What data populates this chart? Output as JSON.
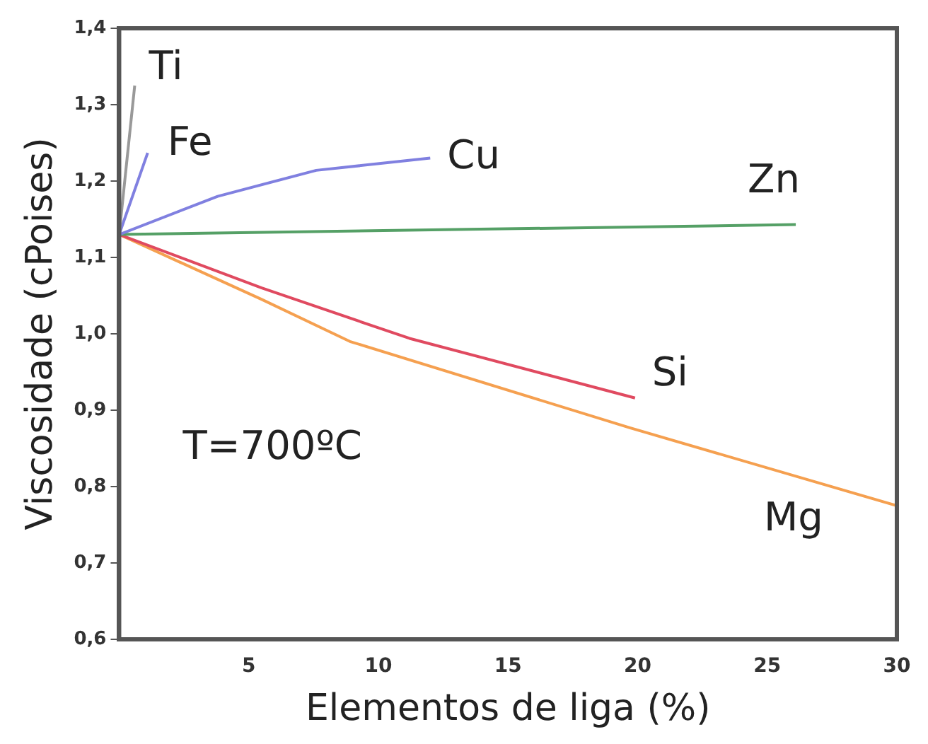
{
  "chart_data": {
    "type": "line",
    "xlabel": "Elementos de liga (%)",
    "ylabel": "Viscosidade (cPoises)",
    "xlim": [
      0,
      30
    ],
    "xticks": [
      5,
      10,
      15,
      20,
      25,
      30
    ],
    "ylim": [
      0.6,
      1.4
    ],
    "yticks": [
      {
        "value": 0.6,
        "label": "0,6"
      },
      {
        "value": 0.7,
        "label": "0,7"
      },
      {
        "value": 0.8,
        "label": "0,8"
      },
      {
        "value": 0.9,
        "label": "0,9"
      },
      {
        "value": 1.0,
        "label": "1,0"
      },
      {
        "value": 1.1,
        "label": "1,1"
      },
      {
        "value": 1.2,
        "label": "1,2"
      },
      {
        "value": 1.3,
        "label": "1,3"
      },
      {
        "value": 1.4,
        "label": "1,4"
      }
    ],
    "grid": false,
    "legend": false,
    "marker": "none",
    "line_style": "solid",
    "annotations": [
      "T=700ºC"
    ],
    "series": [
      {
        "name": "Ti",
        "color": "#999999",
        "x": [
          0,
          0.6
        ],
        "values": [
          1.13,
          1.325
        ]
      },
      {
        "name": "Fe",
        "color": "#8080e0",
        "x": [
          0,
          1.1
        ],
        "values": [
          1.13,
          1.237
        ]
      },
      {
        "name": "Cu",
        "color": "#8080e0",
        "x": [
          0,
          3.8,
          7.6,
          12
        ],
        "values": [
          1.13,
          1.18,
          1.214,
          1.23
        ]
      },
      {
        "name": "Zn",
        "color": "#55a066",
        "x": [
          0,
          26.1
        ],
        "values": [
          1.13,
          1.143
        ]
      },
      {
        "name": "Si",
        "color": "#e04a60",
        "x": [
          0,
          5.5,
          11.2,
          19.9
        ],
        "values": [
          1.13,
          1.06,
          0.994,
          0.916
        ]
      },
      {
        "name": "Mg",
        "color": "#f5a050",
        "x": [
          0,
          5.5,
          8.9,
          19.7,
          30
        ],
        "values": [
          1.13,
          1.045,
          0.99,
          0.877,
          0.775
        ]
      }
    ]
  }
}
